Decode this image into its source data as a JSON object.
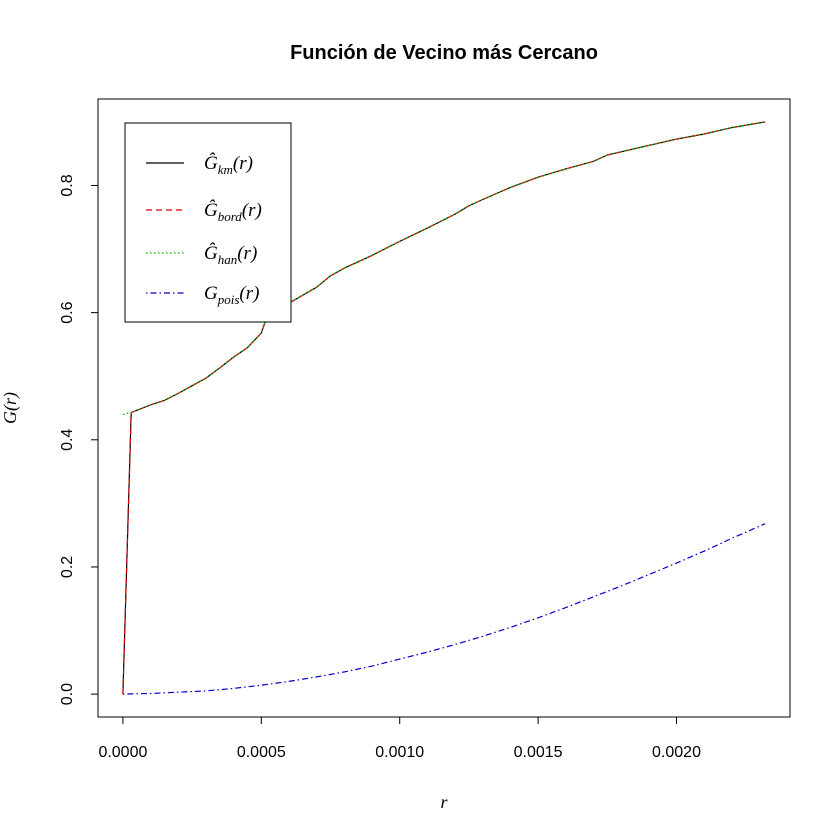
{
  "chart_data": {
    "type": "line",
    "title": "Función de Vecino más Cercano",
    "xlabel": "r",
    "ylabel": "G(r)",
    "xlim": [
      -9e-05,
      0.00241
    ],
    "ylim": [
      -0.036,
      0.936
    ],
    "x_ticks": [
      0.0,
      0.0005,
      0.001,
      0.0015,
      0.002
    ],
    "x_tick_labels": [
      "0.0000",
      "0.0005",
      "0.0010",
      "0.0015",
      "0.0020"
    ],
    "y_ticks": [
      0.0,
      0.2,
      0.4,
      0.6,
      0.8
    ],
    "y_tick_labels": [
      "0.0",
      "0.2",
      "0.4",
      "0.6",
      "0.8"
    ],
    "grid": false,
    "legend_position": "top-left",
    "series": [
      {
        "name": "Ĝkm(r)",
        "legend": {
          "base": "Ĝ",
          "sub": "km",
          "suffix": "(r)"
        },
        "color": "#000000",
        "dash": "solid",
        "x": [
          0.0,
          3e-05,
          6e-05,
          0.0001,
          0.00015,
          0.0002,
          0.00025,
          0.0003,
          0.00035,
          0.0004,
          0.00045,
          0.0005,
          0.00052,
          0.00055,
          0.0006,
          0.0007,
          0.00075,
          0.0008,
          0.0009,
          0.001,
          0.0011,
          0.0012,
          0.00125,
          0.0013,
          0.0014,
          0.0015,
          0.0016,
          0.0017,
          0.00175,
          0.0018,
          0.0019,
          0.002,
          0.0021,
          0.0022,
          0.00232
        ],
        "y": [
          0.0,
          0.443,
          0.448,
          0.455,
          0.462,
          0.473,
          0.485,
          0.497,
          0.513,
          0.53,
          0.545,
          0.568,
          0.593,
          0.603,
          0.615,
          0.64,
          0.658,
          0.67,
          0.69,
          0.712,
          0.733,
          0.755,
          0.768,
          0.778,
          0.797,
          0.813,
          0.826,
          0.838,
          0.848,
          0.853,
          0.863,
          0.873,
          0.881,
          0.891,
          0.9
        ]
      },
      {
        "name": "Ĝbord(r)",
        "legend": {
          "base": "Ĝ",
          "sub": "bord",
          "suffix": "(r)"
        },
        "color": "#dd0000",
        "dash": "dashed",
        "x": [
          0.0,
          3e-05,
          6e-05,
          0.0001,
          0.00015,
          0.0002,
          0.00025,
          0.0003,
          0.00035,
          0.0004,
          0.00045,
          0.0005,
          0.00052,
          0.00055,
          0.0006,
          0.0007,
          0.00075,
          0.0008,
          0.0009,
          0.001,
          0.0011,
          0.0012,
          0.00125,
          0.0013,
          0.0014,
          0.0015,
          0.0016,
          0.0017,
          0.00175,
          0.0018,
          0.0019,
          0.002,
          0.0021,
          0.0022,
          0.00232
        ],
        "y": [
          0.0,
          0.443,
          0.448,
          0.455,
          0.462,
          0.473,
          0.485,
          0.497,
          0.513,
          0.53,
          0.545,
          0.568,
          0.593,
          0.603,
          0.615,
          0.64,
          0.658,
          0.67,
          0.69,
          0.712,
          0.733,
          0.755,
          0.768,
          0.778,
          0.797,
          0.813,
          0.826,
          0.838,
          0.848,
          0.853,
          0.863,
          0.873,
          0.881,
          0.891,
          0.9
        ]
      },
      {
        "name": "Ĝhan(r)",
        "legend": {
          "base": "Ĝ",
          "sub": "han",
          "suffix": "(r)"
        },
        "color": "#00bb00",
        "dash": "dotted",
        "x": [
          0.0,
          3e-05,
          6e-05,
          0.0001,
          0.00015,
          0.0002,
          0.00025,
          0.0003,
          0.00035,
          0.0004,
          0.00045,
          0.0005,
          0.00052,
          0.00055,
          0.0006,
          0.0007,
          0.00075,
          0.0008,
          0.0009,
          0.001,
          0.0011,
          0.0012,
          0.00125,
          0.0013,
          0.0014,
          0.0015,
          0.0016,
          0.0017,
          0.00175,
          0.0018,
          0.0019,
          0.002,
          0.0021,
          0.0022,
          0.00232
        ],
        "y": [
          0.44,
          0.443,
          0.448,
          0.455,
          0.462,
          0.473,
          0.485,
          0.497,
          0.513,
          0.53,
          0.545,
          0.568,
          0.593,
          0.603,
          0.615,
          0.64,
          0.658,
          0.67,
          0.69,
          0.712,
          0.733,
          0.755,
          0.768,
          0.778,
          0.797,
          0.813,
          0.826,
          0.838,
          0.848,
          0.853,
          0.863,
          0.873,
          0.881,
          0.891,
          0.9
        ]
      },
      {
        "name": "Gpois(r)",
        "legend": {
          "base": "G",
          "sub": "pois",
          "suffix": "(r)"
        },
        "color": "#0000cc",
        "dash": "dotdash",
        "x": [
          0.0,
          0.0001,
          0.0002,
          0.0003,
          0.0004,
          0.0005,
          0.0006,
          0.0007,
          0.0008,
          0.0009,
          0.001,
          0.0011,
          0.0012,
          0.0013,
          0.0014,
          0.0015,
          0.0016,
          0.0017,
          0.0018,
          0.0019,
          0.002,
          0.0021,
          0.0022,
          0.00232
        ],
        "y": [
          0.0,
          0.001,
          0.003,
          0.005,
          0.009,
          0.014,
          0.02,
          0.027,
          0.035,
          0.044,
          0.055,
          0.066,
          0.078,
          0.091,
          0.105,
          0.12,
          0.136,
          0.153,
          0.17,
          0.188,
          0.206,
          0.225,
          0.245,
          0.268
        ]
      }
    ]
  }
}
